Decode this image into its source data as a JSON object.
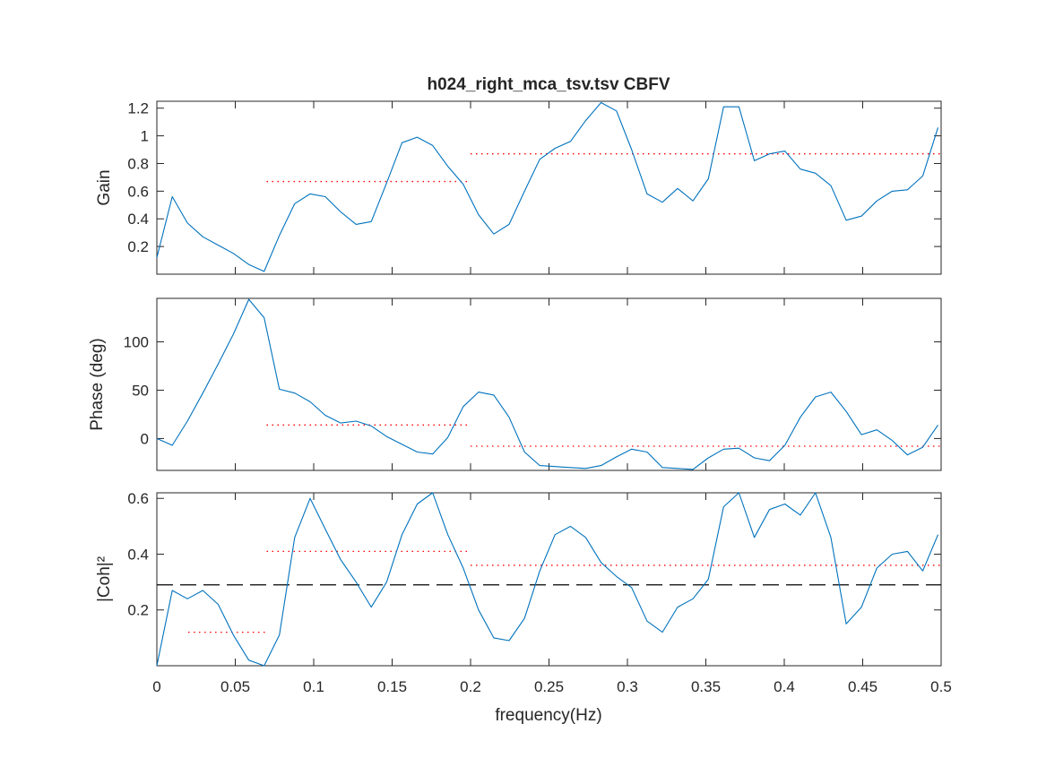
{
  "figure": {
    "title": "h024_right_mca_tsv.tsv CBFV",
    "xlabel": "frequency(Hz)",
    "colors": {
      "signal": "#0072BD",
      "band_mean": "#FF0000",
      "threshold": "#000000",
      "text": "#262626"
    }
  },
  "chart_data": [
    {
      "type": "line",
      "ylabel": "Gain",
      "xlim": [
        0,
        0.5
      ],
      "ylim": [
        0,
        1.25
      ],
      "yticks": [
        0.2,
        0.4,
        0.6,
        0.8,
        1,
        1.2
      ],
      "ytick_labels": [
        "0.2",
        "0.4",
        "0.6",
        "0.8",
        "1",
        "1.2"
      ],
      "xtick_labels_shown": false,
      "x": [
        0.0,
        0.0098,
        0.0195,
        0.0293,
        0.0391,
        0.0488,
        0.0586,
        0.0684,
        0.0781,
        0.0879,
        0.0977,
        0.1074,
        0.1172,
        0.127,
        0.1367,
        0.1465,
        0.1563,
        0.166,
        0.1758,
        0.1855,
        0.1953,
        0.2051,
        0.2148,
        0.2246,
        0.2344,
        0.2441,
        0.2539,
        0.2637,
        0.2734,
        0.2832,
        0.293,
        0.3027,
        0.3125,
        0.3223,
        0.332,
        0.3418,
        0.3516,
        0.3613,
        0.3711,
        0.3809,
        0.3906,
        0.4004,
        0.4102,
        0.4199,
        0.4297,
        0.4395,
        0.4492,
        0.459,
        0.4688,
        0.4785,
        0.4883,
        0.498
      ],
      "y": [
        0.12,
        0.56,
        0.37,
        0.27,
        0.21,
        0.15,
        0.07,
        0.02,
        0.28,
        0.51,
        0.58,
        0.56,
        0.45,
        0.36,
        0.38,
        0.66,
        0.95,
        0.99,
        0.93,
        0.78,
        0.65,
        0.43,
        0.29,
        0.36,
        0.6,
        0.83,
        0.91,
        0.96,
        1.11,
        1.24,
        1.18,
        0.9,
        0.58,
        0.52,
        0.62,
        0.53,
        0.69,
        1.21,
        1.21,
        0.82,
        0.87,
        0.89,
        0.76,
        0.73,
        0.64,
        0.39,
        0.42,
        0.53,
        0.6,
        0.61,
        0.71,
        1.06
      ],
      "band_means": [
        {
          "x": [
            0.07,
            0.2
          ],
          "y": 0.67
        },
        {
          "x": [
            0.2,
            0.5
          ],
          "y": 0.87
        }
      ],
      "threshold": null
    },
    {
      "type": "line",
      "ylabel": "Phase (deg)",
      "xlim": [
        0,
        0.5
      ],
      "ylim": [
        -33,
        145
      ],
      "yticks": [
        0,
        50,
        100
      ],
      "ytick_labels": [
        "0",
        "50",
        "100"
      ],
      "xtick_labels_shown": false,
      "x": [
        0.0,
        0.0098,
        0.0195,
        0.0293,
        0.0391,
        0.0488,
        0.0586,
        0.0684,
        0.0781,
        0.0879,
        0.0977,
        0.1074,
        0.1172,
        0.127,
        0.1367,
        0.1465,
        0.1563,
        0.166,
        0.1758,
        0.1855,
        0.1953,
        0.2051,
        0.2148,
        0.2246,
        0.2344,
        0.2441,
        0.2539,
        0.2637,
        0.2734,
        0.2832,
        0.293,
        0.3027,
        0.3125,
        0.3223,
        0.332,
        0.3418,
        0.3516,
        0.3613,
        0.3711,
        0.3809,
        0.3906,
        0.4004,
        0.4102,
        0.4199,
        0.4297,
        0.4395,
        0.4492,
        0.459,
        0.4688,
        0.4785,
        0.4883,
        0.498
      ],
      "y": [
        0,
        -7,
        18,
        47,
        77,
        108,
        144,
        125,
        51,
        47,
        38,
        24,
        16,
        18,
        13,
        2,
        -6,
        -14,
        -16,
        1,
        33,
        48,
        45,
        22,
        -14,
        -28,
        -29,
        -30,
        -31,
        -28,
        -19,
        -11,
        -14,
        -30,
        -31,
        -32,
        -20,
        -11,
        -10,
        -20,
        -23,
        -7,
        22,
        43,
        48,
        28,
        4,
        9,
        -2,
        -17,
        -9,
        14
      ],
      "band_means": [
        {
          "x": [
            0.07,
            0.2
          ],
          "y": 14
        },
        {
          "x": [
            0.2,
            0.5
          ],
          "y": -8
        }
      ],
      "threshold": null
    },
    {
      "type": "line",
      "ylabel": "|Coh|²",
      "xlim": [
        0,
        0.5
      ],
      "ylim": [
        0,
        0.62
      ],
      "yticks": [
        0.2,
        0.4,
        0.6
      ],
      "ytick_labels": [
        "0.2",
        "0.4",
        "0.6"
      ],
      "xtick_labels_shown": true,
      "xticks": [
        0,
        0.05,
        0.1,
        0.15,
        0.2,
        0.25,
        0.3,
        0.35,
        0.4,
        0.45,
        0.5
      ],
      "xtick_labels": [
        "0",
        "0.05",
        "0.1",
        "0.15",
        "0.2",
        "0.25",
        "0.3",
        "0.35",
        "0.4",
        "0.45",
        "0.5"
      ],
      "x": [
        0.0,
        0.0098,
        0.0195,
        0.0293,
        0.0391,
        0.0488,
        0.0586,
        0.0684,
        0.0781,
        0.0879,
        0.0977,
        0.1074,
        0.1172,
        0.127,
        0.1367,
        0.1465,
        0.1563,
        0.166,
        0.1758,
        0.1855,
        0.1953,
        0.2051,
        0.2148,
        0.2246,
        0.2344,
        0.2441,
        0.2539,
        0.2637,
        0.2734,
        0.2832,
        0.293,
        0.3027,
        0.3125,
        0.3223,
        0.332,
        0.3418,
        0.3516,
        0.3613,
        0.3711,
        0.3809,
        0.3906,
        0.4004,
        0.4102,
        0.4199,
        0.4297,
        0.4395,
        0.4492,
        0.459,
        0.4688,
        0.4785,
        0.4883,
        0.498
      ],
      "y": [
        0.0,
        0.27,
        0.24,
        0.27,
        0.22,
        0.11,
        0.02,
        0.0,
        0.11,
        0.46,
        0.6,
        0.49,
        0.38,
        0.3,
        0.21,
        0.3,
        0.47,
        0.58,
        0.62,
        0.47,
        0.35,
        0.2,
        0.1,
        0.09,
        0.17,
        0.34,
        0.47,
        0.5,
        0.46,
        0.37,
        0.32,
        0.28,
        0.16,
        0.12,
        0.21,
        0.24,
        0.31,
        0.57,
        0.62,
        0.46,
        0.56,
        0.58,
        0.54,
        0.62,
        0.46,
        0.15,
        0.21,
        0.35,
        0.4,
        0.41,
        0.34,
        0.47
      ],
      "band_means": [
        {
          "x": [
            0.02,
            0.07
          ],
          "y": 0.12
        },
        {
          "x": [
            0.07,
            0.2
          ],
          "y": 0.41
        },
        {
          "x": [
            0.2,
            0.5
          ],
          "y": 0.36
        }
      ],
      "threshold": 0.29
    }
  ]
}
